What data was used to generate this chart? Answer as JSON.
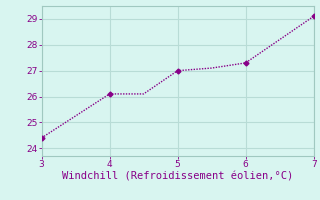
{
  "x": [
    3,
    4,
    4.5,
    5,
    5.5,
    6,
    7
  ],
  "y": [
    24.4,
    26.1,
    26.1,
    27.0,
    27.1,
    27.3,
    29.1
  ],
  "line_color": "#880088",
  "marker_x": [
    3,
    4,
    5,
    6,
    7
  ],
  "marker_y": [
    24.4,
    26.1,
    27.0,
    27.3,
    29.1
  ],
  "xlabel": "Windchill (Refroidissement éolien,°C)",
  "xlabel_color": "#880088",
  "background_color": "#d8f5f0",
  "grid_color": "#b8dcd6",
  "tick_color": "#880088",
  "spine_color": "#a0c8c0",
  "xlim": [
    3,
    7
  ],
  "ylim": [
    23.7,
    29.5
  ],
  "xticks": [
    3,
    4,
    5,
    6,
    7
  ],
  "yticks": [
    24,
    25,
    26,
    27,
    28,
    29
  ],
  "tick_fontsize": 6.5,
  "xlabel_fontsize": 7.5
}
